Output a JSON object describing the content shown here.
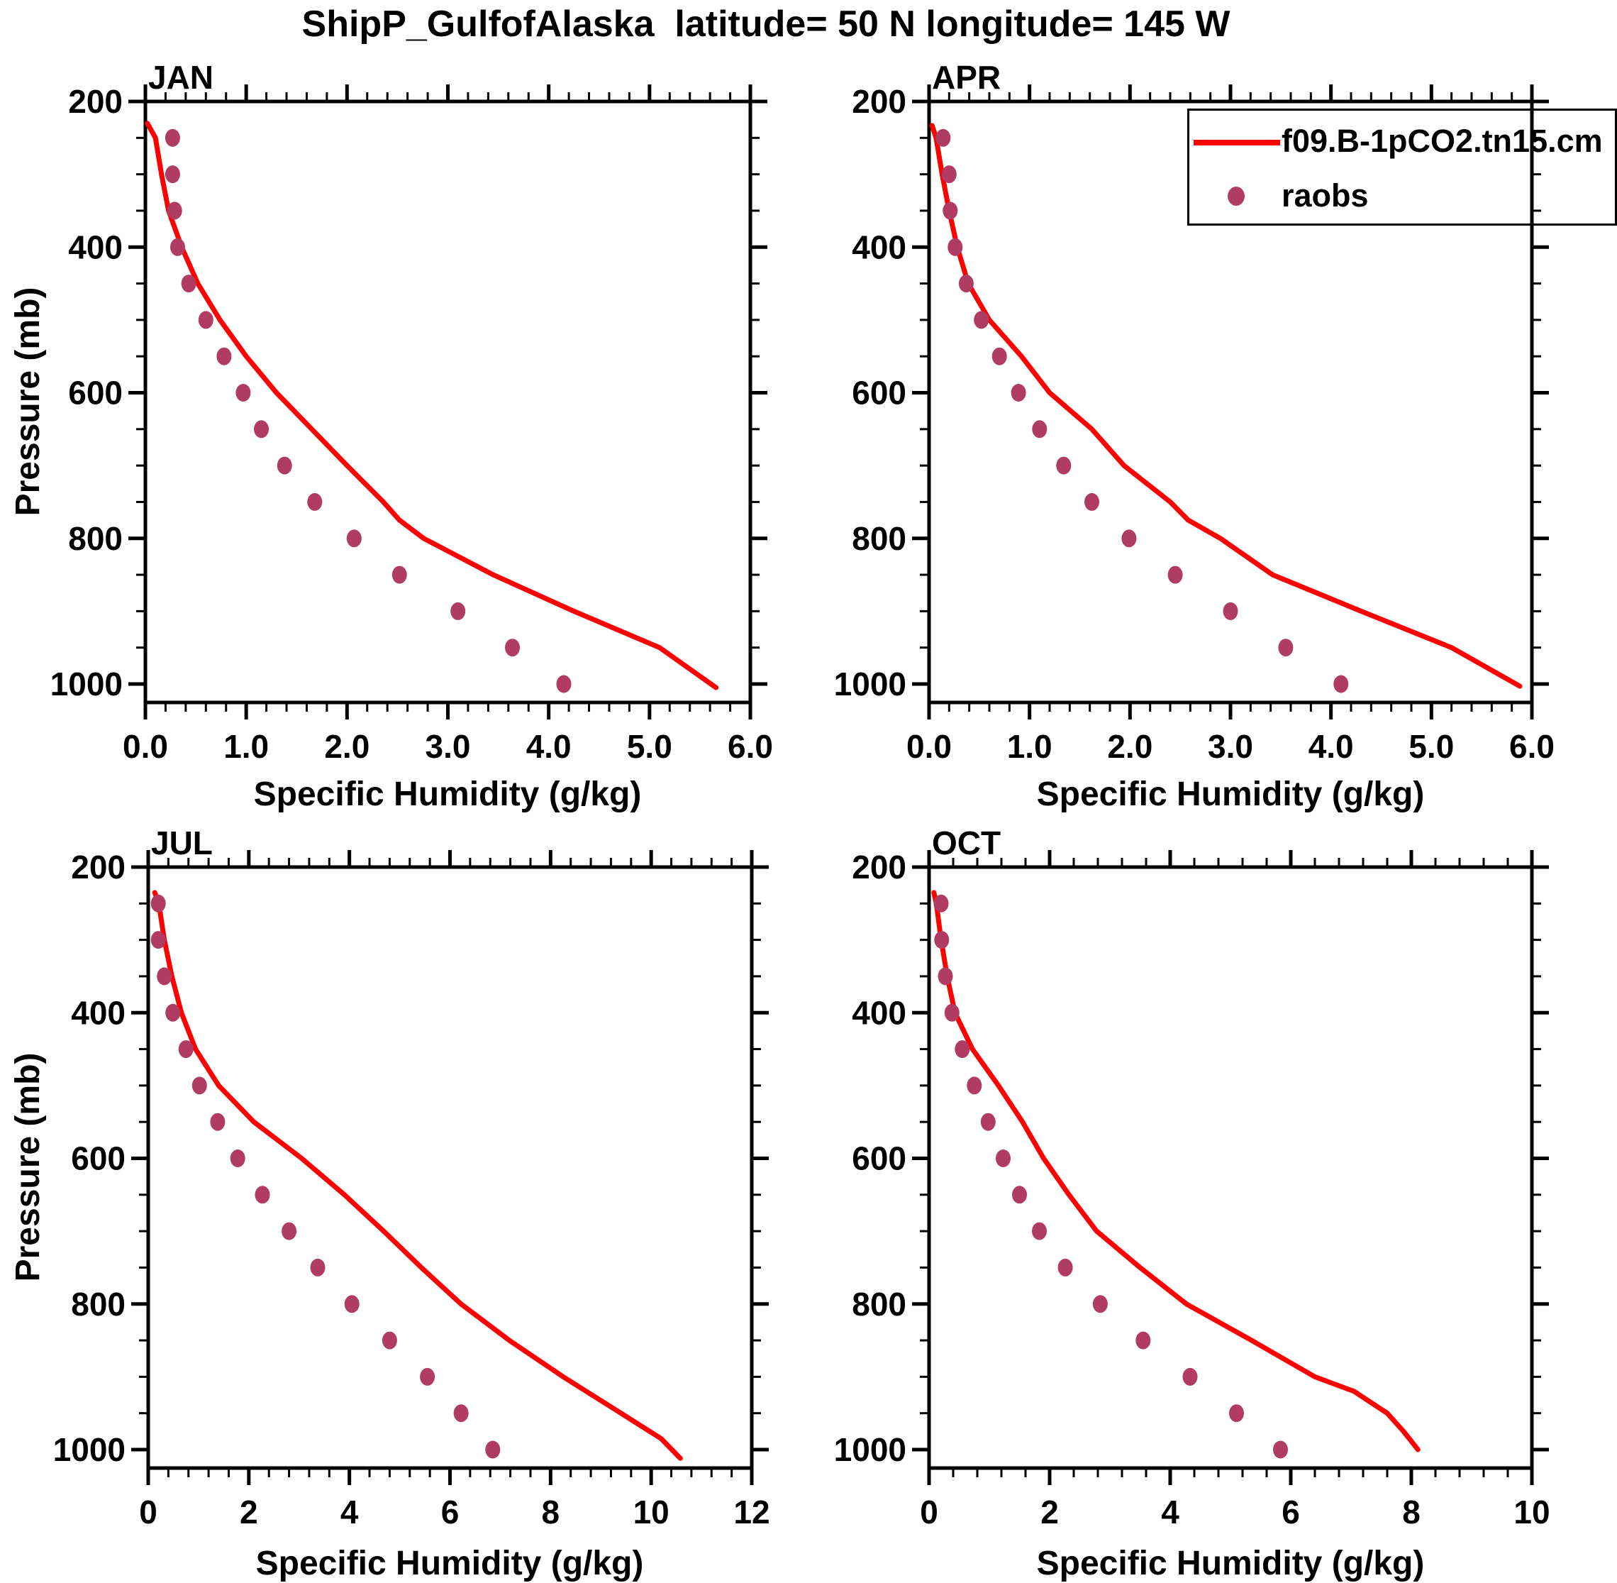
{
  "figure_title": "ShipP_GulfofAlaska  latitude= 50 N longitude= 145 W",
  "colors": {
    "model_line": "#FF0000",
    "obs_dot": "#B03C64",
    "axis": "#000000",
    "background": "#FFFFFF"
  },
  "legend": {
    "model_label": "f09.B-1pCO2.tn15.cm",
    "obs_label": "raobs"
  },
  "chart_data": {
    "type": "line",
    "title": "ShipP_GulfofAlaska  latitude= 50 N longitude= 145 W",
    "xlabel": "Specific Humidity (g/kg)",
    "ylabel": "Pressure (mb)",
    "grid": false,
    "legend_position": "top-right of APR panel, clipped at image edge",
    "y_axis": {
      "min": 200,
      "max": 1025,
      "inverted": true,
      "major_ticks": [
        200,
        400,
        600,
        800,
        1000
      ],
      "major_tick_labels": [
        "200",
        "400",
        "600",
        "800",
        "1000"
      ],
      "minor_step": 50
    },
    "series_names": [
      "f09.B-1pCO2.tn15.cm",
      "raobs"
    ],
    "panels": [
      {
        "id": "jan",
        "title": "JAN",
        "x_max": 6,
        "x_major_step": 1,
        "x_minor_step": 0.2,
        "x_tick_labels": [
          "0.0",
          "1.0",
          "2.0",
          "3.0",
          "4.0",
          "5.0",
          "6.0"
        ],
        "model": [
          [
            230,
            0.02
          ],
          [
            250,
            0.1
          ],
          [
            300,
            0.16
          ],
          [
            350,
            0.23
          ],
          [
            400,
            0.36
          ],
          [
            450,
            0.52
          ],
          [
            500,
            0.74
          ],
          [
            550,
            1.0
          ],
          [
            600,
            1.3
          ],
          [
            650,
            1.65
          ],
          [
            700,
            2.0
          ],
          [
            750,
            2.36
          ],
          [
            775,
            2.52
          ],
          [
            800,
            2.76
          ],
          [
            850,
            3.45
          ],
          [
            900,
            4.25
          ],
          [
            950,
            5.1
          ],
          [
            1005,
            5.66
          ]
        ],
        "obs": [
          [
            250,
            0.27
          ],
          [
            300,
            0.27
          ],
          [
            350,
            0.29
          ],
          [
            400,
            0.32
          ],
          [
            450,
            0.43
          ],
          [
            500,
            0.6
          ],
          [
            550,
            0.78
          ],
          [
            600,
            0.97
          ],
          [
            650,
            1.15
          ],
          [
            700,
            1.38
          ],
          [
            750,
            1.68
          ],
          [
            800,
            2.07
          ],
          [
            850,
            2.52
          ],
          [
            900,
            3.1
          ],
          [
            950,
            3.64
          ],
          [
            1000,
            4.15
          ]
        ]
      },
      {
        "id": "apr",
        "title": "APR",
        "x_max": 6,
        "x_major_step": 1,
        "x_minor_step": 0.2,
        "x_tick_labels": [
          "0.0",
          "1.0",
          "2.0",
          "3.0",
          "4.0",
          "5.0",
          "6.0"
        ],
        "model": [
          [
            233,
            0.03
          ],
          [
            250,
            0.07
          ],
          [
            300,
            0.13
          ],
          [
            350,
            0.2
          ],
          [
            400,
            0.28
          ],
          [
            450,
            0.39
          ],
          [
            500,
            0.6
          ],
          [
            550,
            0.92
          ],
          [
            600,
            1.2
          ],
          [
            650,
            1.62
          ],
          [
            700,
            1.94
          ],
          [
            750,
            2.4
          ],
          [
            775,
            2.58
          ],
          [
            800,
            2.9
          ],
          [
            850,
            3.42
          ],
          [
            900,
            4.3
          ],
          [
            950,
            5.2
          ],
          [
            1003,
            5.88
          ]
        ],
        "obs": [
          [
            250,
            0.14
          ],
          [
            300,
            0.2
          ],
          [
            350,
            0.21
          ],
          [
            400,
            0.26
          ],
          [
            450,
            0.37
          ],
          [
            500,
            0.52
          ],
          [
            550,
            0.7
          ],
          [
            600,
            0.89
          ],
          [
            650,
            1.1
          ],
          [
            700,
            1.34
          ],
          [
            750,
            1.62
          ],
          [
            800,
            1.99
          ],
          [
            850,
            2.45
          ],
          [
            900,
            3.0
          ],
          [
            950,
            3.55
          ],
          [
            1000,
            4.1
          ]
        ]
      },
      {
        "id": "jul",
        "title": "JUL",
        "x_max": 12,
        "x_major_step": 2,
        "x_minor_step": 0.4,
        "x_tick_labels": [
          "0",
          "2",
          "4",
          "6",
          "8",
          "10",
          "12"
        ],
        "model": [
          [
            235,
            0.13
          ],
          [
            250,
            0.21
          ],
          [
            300,
            0.32
          ],
          [
            350,
            0.47
          ],
          [
            400,
            0.66
          ],
          [
            450,
            0.94
          ],
          [
            500,
            1.4
          ],
          [
            550,
            2.1
          ],
          [
            600,
            3.05
          ],
          [
            650,
            3.9
          ],
          [
            700,
            4.68
          ],
          [
            750,
            5.43
          ],
          [
            800,
            6.22
          ],
          [
            850,
            7.18
          ],
          [
            900,
            8.25
          ],
          [
            950,
            9.4
          ],
          [
            985,
            10.2
          ],
          [
            1012,
            10.58
          ]
        ],
        "obs": [
          [
            250,
            0.2
          ],
          [
            300,
            0.2
          ],
          [
            350,
            0.32
          ],
          [
            400,
            0.49
          ],
          [
            450,
            0.75
          ],
          [
            500,
            1.02
          ],
          [
            550,
            1.38
          ],
          [
            600,
            1.78
          ],
          [
            650,
            2.27
          ],
          [
            700,
            2.8
          ],
          [
            750,
            3.37
          ],
          [
            800,
            4.05
          ],
          [
            850,
            4.8
          ],
          [
            900,
            5.55
          ],
          [
            950,
            6.22
          ],
          [
            1000,
            6.85
          ]
        ]
      },
      {
        "id": "oct",
        "title": "OCT",
        "x_max": 10,
        "x_major_step": 2,
        "x_minor_step": 0.4,
        "x_tick_labels": [
          "0",
          "2",
          "4",
          "6",
          "8",
          "10"
        ],
        "model": [
          [
            235,
            0.08
          ],
          [
            250,
            0.12
          ],
          [
            300,
            0.2
          ],
          [
            350,
            0.3
          ],
          [
            400,
            0.43
          ],
          [
            450,
            0.72
          ],
          [
            500,
            1.15
          ],
          [
            550,
            1.55
          ],
          [
            600,
            1.9
          ],
          [
            650,
            2.32
          ],
          [
            700,
            2.78
          ],
          [
            750,
            3.5
          ],
          [
            800,
            4.27
          ],
          [
            850,
            5.35
          ],
          [
            900,
            6.4
          ],
          [
            920,
            7.05
          ],
          [
            950,
            7.6
          ],
          [
            975,
            7.87
          ],
          [
            1000,
            8.11
          ]
        ],
        "obs": [
          [
            250,
            0.2
          ],
          [
            300,
            0.21
          ],
          [
            350,
            0.27
          ],
          [
            400,
            0.38
          ],
          [
            450,
            0.55
          ],
          [
            500,
            0.75
          ],
          [
            550,
            0.98
          ],
          [
            600,
            1.23
          ],
          [
            650,
            1.5
          ],
          [
            700,
            1.83
          ],
          [
            750,
            2.26
          ],
          [
            800,
            2.84
          ],
          [
            850,
            3.55
          ],
          [
            900,
            4.33
          ],
          [
            950,
            5.1
          ],
          [
            1000,
            5.83
          ]
        ]
      }
    ]
  }
}
